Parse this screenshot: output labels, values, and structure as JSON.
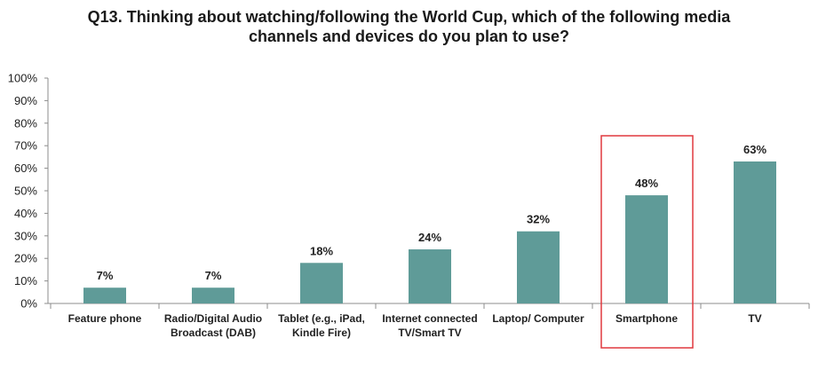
{
  "chart_data": {
    "type": "bar",
    "title": "Q13. Thinking about watching/following the World Cup, which of the following media channels and devices do you plan to use?",
    "title_lines": [
      "Q13. Thinking about watching/following the World Cup, which of the following media",
      "channels and devices do you plan to use?"
    ],
    "categories": [
      "Feature phone",
      "Radio/Digital Audio Broadcast (DAB)",
      "Tablet (e.g., iPad, Kindle Fire)",
      "Internet connected TV/Smart TV",
      "Laptop/ Computer",
      "Smartphone",
      "TV"
    ],
    "category_lines": [
      [
        "Feature phone"
      ],
      [
        "Radio/Digital Audio",
        "Broadcast (DAB)"
      ],
      [
        "Tablet (e.g., iPad,",
        "Kindle Fire)"
      ],
      [
        "Internet connected",
        "TV/Smart TV"
      ],
      [
        "Laptop/ Computer"
      ],
      [
        "Smartphone"
      ],
      [
        "TV"
      ]
    ],
    "values": [
      7,
      7,
      18,
      24,
      32,
      48,
      63
    ],
    "data_labels": [
      "7%",
      "7%",
      "18%",
      "24%",
      "32%",
      "48%",
      "63%"
    ],
    "yticks": [
      "0%",
      "10%",
      "20%",
      "30%",
      "40%",
      "50%",
      "60%",
      "70%",
      "80%",
      "90%",
      "100%"
    ],
    "ylim": [
      0,
      100
    ],
    "xlabel": "",
    "ylabel": "",
    "grid": false,
    "highlighted_category": "Smartphone",
    "colors": {
      "bar": "#5f9b98",
      "highlight_box": "#e0393e",
      "axis": "#8c8c8c",
      "text": "#222222"
    }
  }
}
